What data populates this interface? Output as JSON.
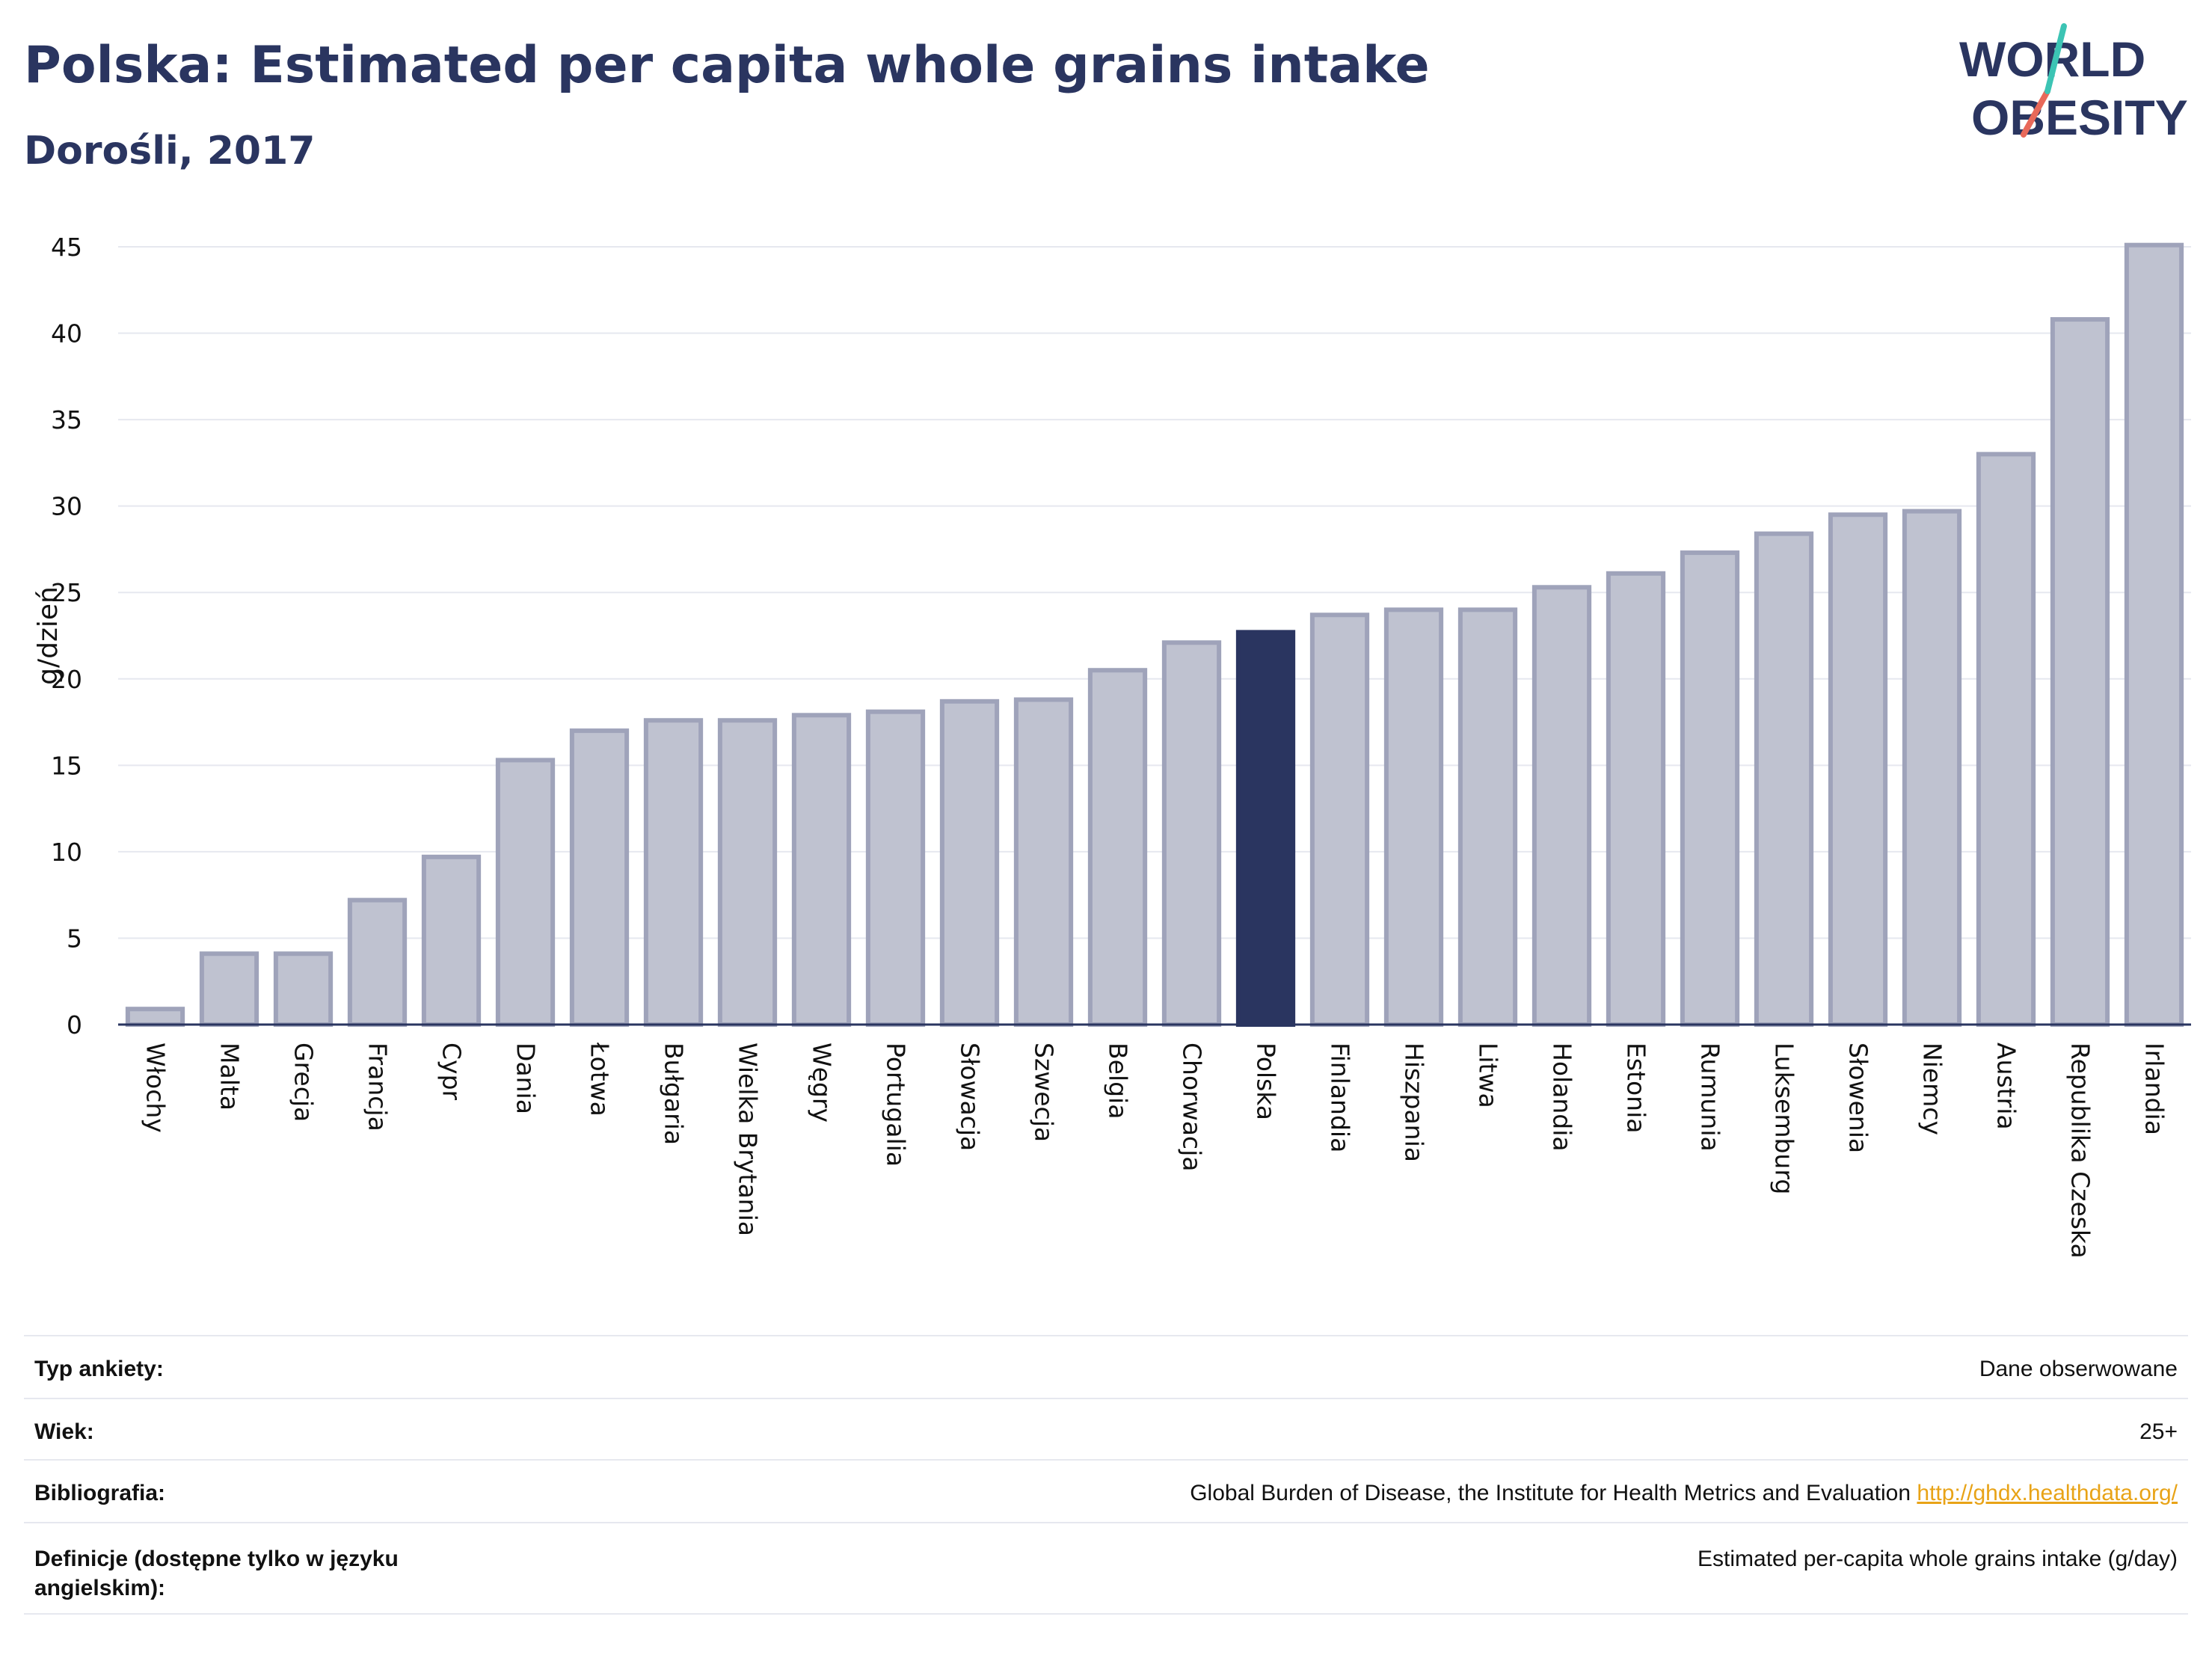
{
  "header": {
    "title": "Polska: Estimated per capita whole grains intake",
    "subtitle": "Dorośli, 2017"
  },
  "logo": {
    "line1": "WORLD",
    "line2": "OBESITY",
    "colors": {
      "text": "#2a3560",
      "slash_top": "#3cc4b4",
      "slash_bottom": "#e8695a"
    }
  },
  "colors": {
    "bar_fill": "#bfc2d0",
    "bar_stroke": "#9fa3ba",
    "highlight": "#2a3560",
    "grid": "#e6e8ef",
    "axis": "#2a3560"
  },
  "chart_data": {
    "type": "bar",
    "ylabel": "g/dzień",
    "ylim": [
      0,
      45
    ],
    "yticks": [
      0,
      5,
      10,
      15,
      20,
      25,
      30,
      35,
      40,
      45
    ],
    "grid": true,
    "highlight": "Polska",
    "categories": [
      "Włochy",
      "Malta",
      "Grecja",
      "Francja",
      "Cypr",
      "Dania",
      "Łotwa",
      "Bułgaria",
      "Wielka Brytania",
      "Węgry",
      "Portugalia",
      "Słowacja",
      "Szwecja",
      "Belgia",
      "Chorwacja",
      "Polska",
      "Finlandia",
      "Hiszpania",
      "Litwa",
      "Holandia",
      "Estonia",
      "Rumunia",
      "Luksemburg",
      "Słowenia",
      "Niemcy",
      "Austria",
      "Republika Czeska",
      "Irlandia"
    ],
    "values": [
      0.9,
      4.1,
      4.1,
      7.2,
      9.7,
      15.3,
      17.0,
      17.6,
      17.6,
      17.9,
      18.1,
      18.7,
      18.8,
      20.5,
      22.1,
      22.7,
      23.7,
      24.0,
      24.0,
      25.3,
      26.1,
      27.3,
      28.4,
      29.5,
      29.7,
      33.0,
      40.8,
      45.1
    ]
  },
  "info": {
    "rows": [
      {
        "label": "Typ ankiety:",
        "value": "Dane obserwowane",
        "link": ""
      },
      {
        "label": "Wiek:",
        "value": "25+",
        "link": ""
      },
      {
        "label": "Bibliografia:",
        "value": "Global Burden of Disease, the Institute for Health Metrics and Evaluation",
        "link": "http://ghdx.healthdata.org/"
      },
      {
        "label": "Definicje (dostępne tylko w języku angielskim):",
        "value": "Estimated per-capita whole grains intake (g/day)",
        "link": ""
      }
    ]
  }
}
